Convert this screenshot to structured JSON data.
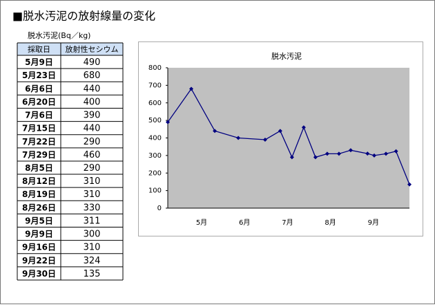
{
  "header": {
    "title": "■脱水汚泥の放射線量の変化",
    "subtitle": "脱水汚泥(Bq／kg)"
  },
  "table": {
    "columns": [
      "採取日",
      "放射性セシウム"
    ],
    "rows": [
      [
        "5月9日",
        490
      ],
      [
        "5月23日",
        680
      ],
      [
        "6月6日",
        440
      ],
      [
        "6月20日",
        400
      ],
      [
        "7月6日",
        390
      ],
      [
        "7月15日",
        440
      ],
      [
        "7月22日",
        290
      ],
      [
        "7月29日",
        460
      ],
      [
        "8月5日",
        290
      ],
      [
        "8月12日",
        310
      ],
      [
        "8月19日",
        310
      ],
      [
        "8月26日",
        330
      ],
      [
        "9月5日",
        311
      ],
      [
        "9月9日",
        300
      ],
      [
        "9月16日",
        310
      ],
      [
        "9月22日",
        324
      ],
      [
        "9月30日",
        135
      ]
    ]
  },
  "chart_data": {
    "type": "line",
    "title": "脱水汚泥",
    "color": "#000080",
    "xticks": [
      "5月",
      "6月",
      "7月",
      "8月",
      "9月"
    ],
    "ylim": [
      0,
      800
    ],
    "yticks": [
      0,
      100,
      200,
      300,
      400,
      500,
      600,
      700,
      800
    ],
    "grid": false
  }
}
